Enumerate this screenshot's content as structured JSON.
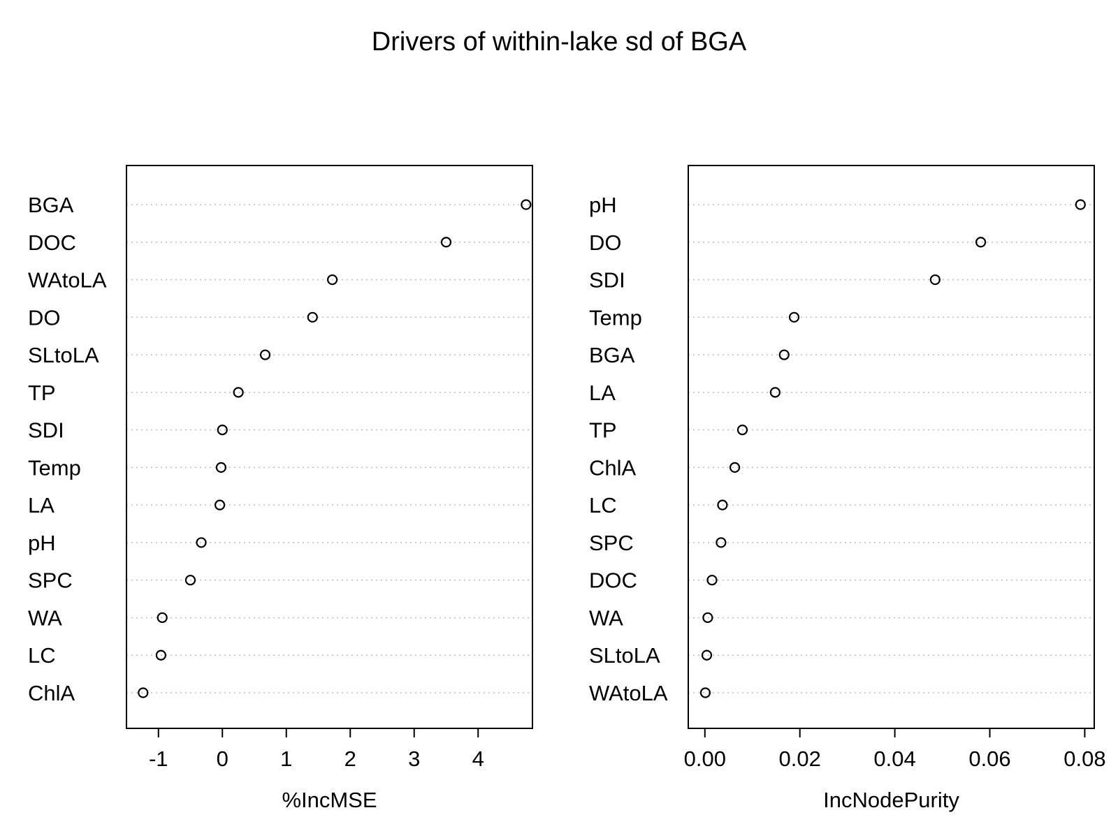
{
  "title": "Drivers of within-lake sd of BGA",
  "chart_data": [
    {
      "type": "scatter",
      "xlabel": "%IncMSE",
      "xlim": [
        -1.5,
        4.85
      ],
      "xticks": [
        -1,
        0,
        1,
        2,
        3,
        4
      ],
      "xtick_labels": [
        "-1",
        "0",
        "1",
        "2",
        "3",
        "4"
      ],
      "grid": "dotted horizontal lines at each variable",
      "categories": [
        "BGA",
        "DOC",
        "WAtoLA",
        "DO",
        "SLtoLA",
        "TP",
        "SDI",
        "Temp",
        "LA",
        "pH",
        "SPC",
        "WA",
        "LC",
        "ChlA"
      ],
      "values": [
        4.75,
        3.5,
        1.72,
        1.41,
        0.67,
        0.25,
        0.0,
        -0.02,
        -0.04,
        -0.33,
        -0.5,
        -0.94,
        -0.96,
        -1.24
      ]
    },
    {
      "type": "scatter",
      "xlabel": "IncNodePurity",
      "xlim": [
        -0.0035,
        0.082
      ],
      "xticks": [
        0.0,
        0.02,
        0.04,
        0.06,
        0.08
      ],
      "xtick_labels": [
        "0.00",
        "0.02",
        "0.04",
        "0.06",
        "0.08"
      ],
      "grid": "dotted horizontal lines at each variable",
      "categories": [
        "pH",
        "DO",
        "SDI",
        "Temp",
        "BGA",
        "LA",
        "TP",
        "ChlA",
        "LC",
        "SPC",
        "DOC",
        "WA",
        "SLtoLA",
        "WAtoLA"
      ],
      "values": [
        0.0791,
        0.0581,
        0.0485,
        0.0188,
        0.0167,
        0.0148,
        0.0079,
        0.0063,
        0.0037,
        0.0034,
        0.0015,
        0.0006,
        0.0004,
        0.0001
      ]
    }
  ]
}
